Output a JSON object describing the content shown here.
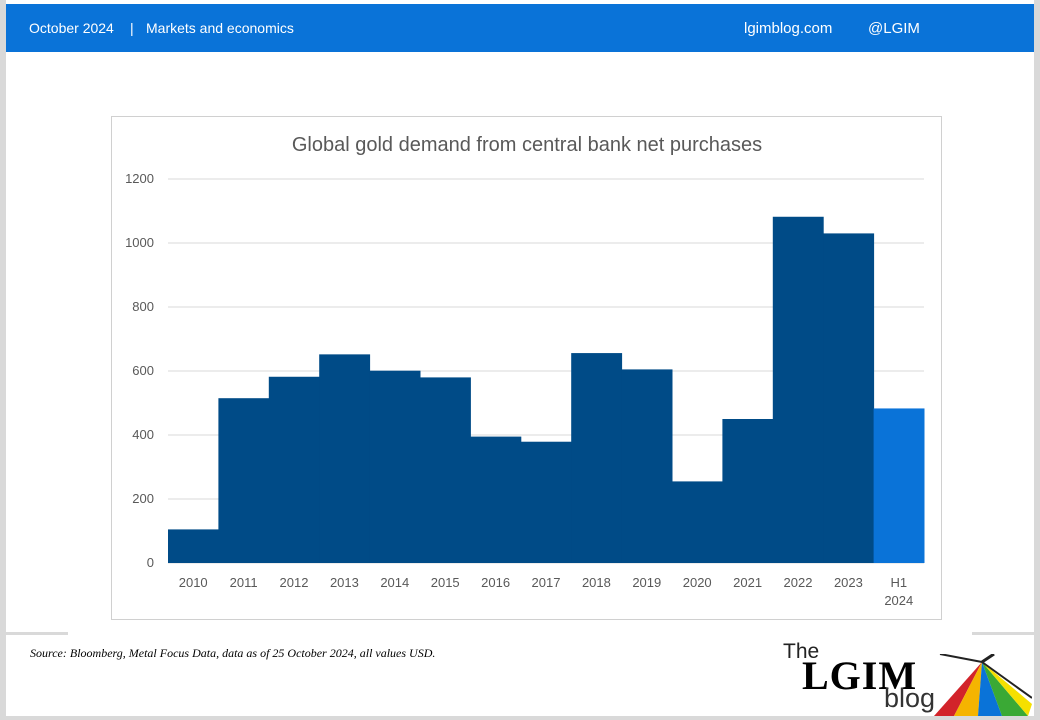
{
  "header": {
    "date": "October 2024",
    "separator": "|",
    "section": "Markets and economics",
    "site": "lgimblog.com",
    "handle": "@LGIM"
  },
  "chart_data": {
    "type": "bar",
    "title": "Global gold demand from central bank net purchases",
    "xlabel": "",
    "ylabel": "",
    "ylim": [
      0,
      1200
    ],
    "yticks": [
      0,
      200,
      400,
      600,
      800,
      1000,
      1200
    ],
    "grid": true,
    "categories": [
      "2010",
      "2011",
      "2012",
      "2013",
      "2014",
      "2015",
      "2016",
      "2017",
      "2018",
      "2019",
      "2020",
      "2021",
      "2022",
      "2023",
      "H1 2024"
    ],
    "values": [
      105,
      515,
      582,
      652,
      601,
      580,
      395,
      379,
      656,
      605,
      255,
      450,
      1082,
      1030,
      483
    ],
    "colors": [
      "#004b87",
      "#004b87",
      "#004b87",
      "#004b87",
      "#004b87",
      "#004b87",
      "#004b87",
      "#004b87",
      "#004b87",
      "#004b87",
      "#004b87",
      "#004b87",
      "#004b87",
      "#004b87",
      "#0a73d8"
    ]
  },
  "source": "Source: Bloomberg, Metal Focus Data, data as of 25 October 2024, all values USD.",
  "logo": {
    "the": "The",
    "lgim": "LGIM",
    "blog": "blog"
  },
  "colors": {
    "header": "#0a73d8",
    "bar_main": "#004b87",
    "bar_highlight": "#0a73d8"
  }
}
